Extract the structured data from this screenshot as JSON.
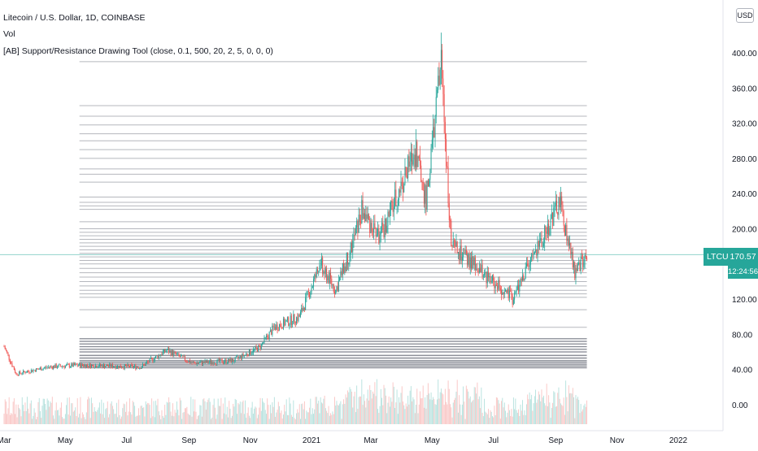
{
  "legend": {
    "title": "Litecoin / U.S. Dollar, 1D, COINBASE",
    "volume": "Vol",
    "indicator": "[AB] Support/Resistance Drawing Tool (close, 0.1, 500, 20, 2, 5, 0, 0, 0)"
  },
  "currency_badge": "USD",
  "last_price": {
    "symbol": "LTCUSD",
    "value": "170.57",
    "countdown": "12:24:56"
  },
  "colors": {
    "up": "#26a69a",
    "down": "#ef5350",
    "levels": "#787b86",
    "background": "#ffffff",
    "price_line": "#26a69a"
  },
  "chart_data": {
    "type": "candlestick",
    "x_ticks": [
      "Mar",
      "May",
      "Jul",
      "Sep",
      "Nov",
      "2021",
      "Mar",
      "May",
      "Jul",
      "Sep",
      "Nov",
      "2022"
    ],
    "y_ticks": [
      "0.00",
      "40.00",
      "80.00",
      "120.00",
      "160.00",
      "200.00",
      "240.00",
      "280.00",
      "320.00",
      "360.00",
      "400.00"
    ],
    "ylim": [
      -10,
      420
    ],
    "price_path": [
      {
        "date": "2020-03-01",
        "close": 66
      },
      {
        "date": "2020-03-13",
        "close": 35
      },
      {
        "date": "2020-04-15",
        "close": 43
      },
      {
        "date": "2020-05-15",
        "close": 45
      },
      {
        "date": "2020-06-15",
        "close": 44
      },
      {
        "date": "2020-07-15",
        "close": 43
      },
      {
        "date": "2020-08-10",
        "close": 62
      },
      {
        "date": "2020-09-05",
        "close": 47
      },
      {
        "date": "2020-10-15",
        "close": 50
      },
      {
        "date": "2020-11-10",
        "close": 65
      },
      {
        "date": "2020-11-25",
        "close": 88
      },
      {
        "date": "2020-12-20",
        "close": 100
      },
      {
        "date": "2021-01-10",
        "close": 160
      },
      {
        "date": "2021-01-25",
        "close": 130
      },
      {
        "date": "2021-02-10",
        "close": 180
      },
      {
        "date": "2021-02-20",
        "close": 220
      },
      {
        "date": "2021-03-10",
        "close": 190
      },
      {
        "date": "2021-04-15",
        "close": 290
      },
      {
        "date": "2021-04-25",
        "close": 230
      },
      {
        "date": "2021-05-10",
        "close": 390
      },
      {
        "date": "2021-05-20",
        "close": 180
      },
      {
        "date": "2021-06-20",
        "close": 150
      },
      {
        "date": "2021-07-20",
        "close": 120
      },
      {
        "date": "2021-08-15",
        "close": 180
      },
      {
        "date": "2021-09-05",
        "close": 230
      },
      {
        "date": "2021-09-20",
        "close": 150
      },
      {
        "date": "2021-10-02",
        "close": 170.57
      }
    ],
    "support_resistance_levels": [
      42,
      44,
      46,
      48,
      50,
      53,
      56,
      60,
      63,
      66,
      69,
      72,
      75,
      88,
      108,
      122,
      126,
      130,
      135,
      140,
      145,
      150,
      155,
      160,
      164,
      168,
      172,
      176,
      180,
      184,
      188,
      192,
      196,
      200,
      208,
      222,
      226,
      230,
      236,
      253,
      262,
      268,
      280,
      290,
      300,
      308,
      318,
      328,
      340,
      390
    ],
    "levels_range": {
      "start": "2020-05-15",
      "end": "2021-10-02"
    },
    "last_close": 170.57
  }
}
